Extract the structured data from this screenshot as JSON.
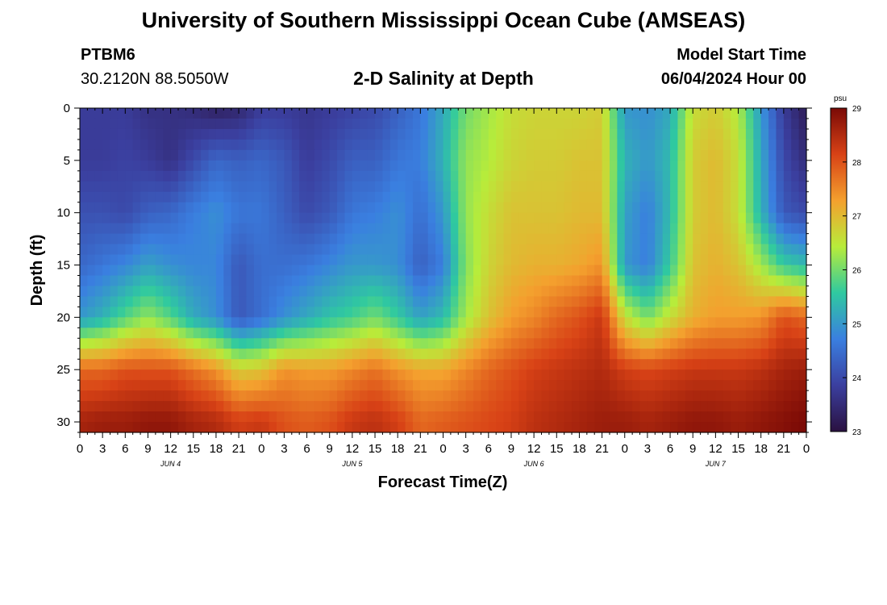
{
  "header": {
    "title": "University of Southern Mississippi Ocean Cube (AMSEAS)",
    "station": "PTBM6",
    "coordinates": "30.2120N  88.5050W",
    "subtitle": "2-D Salinity at Depth",
    "start_label": "Model Start Time",
    "start_value": "06/04/2024 Hour 00"
  },
  "footer": {
    "title": "University of Southern Mississippi Ocean Cube (AMSEAS)"
  },
  "chart_data": {
    "type": "heatmap",
    "variable": "salinity",
    "units": "psu",
    "xlabel": "Forecast Time(Z)",
    "ylabel": "Depth (ft)",
    "x_range_hours": [
      0,
      96
    ],
    "y_range_ft": [
      0,
      31
    ],
    "y_ticks": [
      0,
      5,
      10,
      15,
      20,
      25,
      30
    ],
    "x_tick_hours": [
      0,
      3,
      6,
      9,
      12,
      15,
      18,
      21,
      24,
      27,
      30,
      33,
      36,
      39,
      42,
      45,
      48,
      51,
      54,
      57,
      60,
      63,
      66,
      69,
      72,
      75,
      78,
      81,
      84,
      87,
      90,
      93,
      96
    ],
    "x_tick_labels": [
      "0",
      "3",
      "6",
      "9",
      "12",
      "15",
      "18",
      "21",
      "0",
      "3",
      "6",
      "9",
      "12",
      "15",
      "18",
      "21",
      "0",
      "3",
      "6",
      "9",
      "12",
      "15",
      "18",
      "21",
      "0",
      "3",
      "6",
      "9",
      "12",
      "15",
      "18",
      "21",
      "0"
    ],
    "date_labels": [
      {
        "hour": 12,
        "text": "JUN 4"
      },
      {
        "hour": 36,
        "text": "JUN 5"
      },
      {
        "hour": 60,
        "text": "JUN 6"
      },
      {
        "hour": 84,
        "text": "JUN 7"
      }
    ],
    "colorbar": {
      "min": 23,
      "max": 29,
      "ticks": [
        23,
        24,
        25,
        26,
        27,
        28,
        29
      ],
      "tick_labels": [
        "23",
        "24",
        "25",
        "26",
        "27",
        "28",
        "29"
      ],
      "units_label": "psu",
      "colors": [
        "#2a1140",
        "#3b3f9f",
        "#3a7fe0",
        "#2fc9a0",
        "#b8ec3a",
        "#f4a02e",
        "#d84216",
        "#7a0a06"
      ]
    },
    "depths_ft": [
      0,
      5,
      10,
      15,
      20,
      25,
      30
    ],
    "times_hr": [
      0,
      3,
      6,
      9,
      12,
      15,
      18,
      21,
      24,
      27,
      30,
      33,
      36,
      39,
      42,
      45,
      48,
      51,
      54,
      57,
      60,
      63,
      66,
      69,
      72,
      75,
      78,
      81,
      84,
      87,
      90,
      93,
      96
    ],
    "salinity": [
      [
        23.8,
        23.8,
        23.8,
        23.6,
        23.6,
        23.5,
        23.3,
        23.4,
        23.8,
        23.8,
        23.7,
        23.8,
        23.9,
        24.0,
        24.3,
        24.6,
        25.2,
        26.0,
        26.3,
        26.6,
        26.7,
        26.7,
        26.7,
        26.8,
        25.0,
        24.9,
        25.2,
        26.6,
        26.8,
        26.4,
        25.0,
        23.8,
        23.2
      ],
      [
        23.8,
        23.8,
        23.9,
        23.8,
        23.6,
        24.0,
        24.4,
        24.3,
        24.4,
        24.2,
        23.8,
        24.0,
        24.3,
        24.3,
        24.6,
        24.7,
        25.3,
        26.2,
        26.4,
        26.7,
        26.8,
        26.8,
        26.9,
        26.9,
        25.3,
        25.0,
        25.4,
        26.8,
        27.0,
        26.6,
        25.2,
        24.0,
        23.5
      ],
      [
        24.1,
        24.1,
        24.0,
        24.3,
        24.4,
        24.7,
        24.9,
        24.6,
        24.6,
        24.3,
        24.0,
        24.2,
        24.6,
        24.7,
        24.9,
        24.5,
        25.0,
        26.2,
        26.6,
        26.9,
        26.9,
        26.9,
        27.0,
        27.0,
        25.1,
        24.7,
        25.4,
        26.8,
        27.0,
        26.6,
        25.3,
        24.2,
        24.0
      ],
      [
        24.4,
        24.6,
        24.8,
        25.1,
        24.9,
        24.8,
        24.8,
        24.2,
        24.5,
        24.5,
        24.6,
        24.8,
        25.0,
        25.0,
        24.9,
        24.3,
        24.7,
        26.1,
        26.7,
        27.0,
        27.1,
        27.1,
        27.2,
        27.4,
        25.0,
        24.7,
        25.6,
        26.9,
        27.1,
        26.9,
        26.3,
        25.6,
        25.4
      ],
      [
        25.0,
        25.3,
        25.8,
        26.2,
        25.8,
        25.2,
        24.9,
        24.2,
        24.5,
        24.9,
        25.2,
        25.5,
        25.7,
        26.0,
        25.6,
        25.1,
        25.4,
        26.3,
        26.9,
        27.3,
        27.5,
        27.8,
        28.0,
        28.3,
        26.6,
        26.0,
        26.6,
        27.1,
        27.3,
        27.3,
        27.4,
        28.0,
        27.8
      ],
      [
        27.8,
        27.8,
        28.0,
        28.0,
        28.0,
        27.7,
        27.4,
        26.8,
        26.9,
        27.4,
        27.3,
        27.3,
        27.5,
        27.7,
        27.4,
        27.2,
        27.2,
        27.5,
        27.8,
        28.0,
        28.2,
        28.3,
        28.4,
        28.5,
        28.2,
        28.1,
        28.2,
        28.3,
        28.3,
        28.3,
        28.4,
        28.6,
        28.7
      ],
      [
        28.6,
        28.7,
        28.7,
        28.8,
        28.8,
        28.6,
        28.5,
        28.2,
        28.3,
        28.0,
        27.9,
        28.0,
        28.3,
        28.4,
        28.2,
        27.8,
        27.9,
        28.0,
        28.1,
        28.2,
        28.4,
        28.5,
        28.6,
        28.7,
        28.7,
        28.6,
        28.7,
        28.8,
        28.8,
        28.7,
        28.8,
        28.9,
        29.0
      ]
    ]
  }
}
